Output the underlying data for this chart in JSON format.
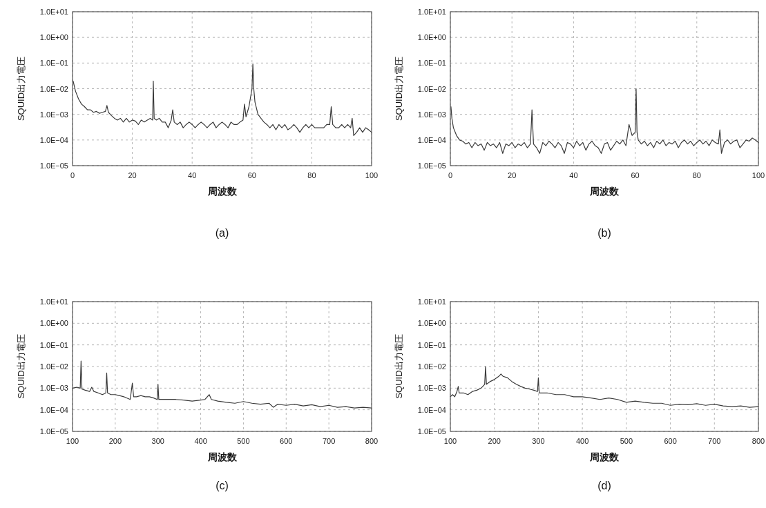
{
  "chart_data": [
    {
      "type": "line",
      "xlabel": "周波数",
      "ylabel": "SQUID出力電圧",
      "annotations": [
        "(a)"
      ],
      "log": "y",
      "grid": true,
      "xlim": [
        0,
        100
      ],
      "xticks": [
        0,
        20,
        40,
        60,
        80,
        100
      ],
      "ylim": [
        1e-05,
        10
      ],
      "yticks": [
        {
          "value": 1e-05,
          "label": "1.0E−05"
        },
        {
          "value": 0.0001,
          "label": "1.0E−04"
        },
        {
          "value": 0.001,
          "label": "1.0E−03"
        },
        {
          "value": 0.01,
          "label": "1.0E−02"
        },
        {
          "value": 0.1,
          "label": "1.0E−01"
        },
        {
          "value": 1,
          "label": "1.0E+00"
        },
        {
          "value": 10,
          "label": "1.0E+01"
        }
      ],
      "series": [
        {
          "color": "#3a3a3a",
          "x": [
            0.2,
            1,
            2,
            3,
            4,
            5,
            6,
            7,
            8,
            9,
            10,
            11,
            11.5,
            12,
            13,
            14,
            15,
            16,
            17,
            18,
            19,
            20,
            21,
            22,
            23,
            24,
            25,
            26,
            26.8,
            27,
            27.3,
            28,
            29,
            30,
            31,
            32,
            33,
            33.5,
            34,
            35,
            36,
            37,
            38,
            39,
            40,
            41,
            42,
            43,
            44,
            45,
            46,
            47,
            48,
            49,
            50,
            51,
            52,
            53,
            54,
            55,
            56,
            57,
            57.5,
            58,
            59,
            60,
            60.3,
            60.6,
            61,
            62,
            63,
            64,
            65,
            66,
            67,
            68,
            69,
            70,
            71,
            72,
            73,
            74,
            75,
            76,
            77,
            78,
            79,
            80,
            81,
            82,
            83,
            84,
            85,
            86,
            86.5,
            87,
            88,
            89,
            90,
            91,
            92,
            93,
            93.5,
            94,
            95,
            96,
            97,
            98,
            99,
            100
          ],
          "values": [
            0.02,
            0.008,
            0.004,
            0.0025,
            0.002,
            0.0015,
            0.0015,
            0.0012,
            0.0013,
            0.0011,
            0.0012,
            0.0013,
            0.0022,
            0.0012,
            0.0009,
            0.0007,
            0.0006,
            0.0007,
            0.0005,
            0.0007,
            0.0005,
            0.0006,
            0.00055,
            0.0004,
            0.0006,
            0.0005,
            0.0006,
            0.0007,
            0.0006,
            0.02,
            0.0007,
            0.0006,
            0.0007,
            0.0005,
            0.0005,
            0.0003,
            0.0006,
            0.0015,
            0.0005,
            0.0004,
            0.0005,
            0.0003,
            0.0004,
            0.0005,
            0.0004,
            0.0003,
            0.0004,
            0.0005,
            0.0004,
            0.0003,
            0.0004,
            0.0005,
            0.0003,
            0.0004,
            0.0005,
            0.0004,
            0.0003,
            0.0005,
            0.0004,
            0.0004,
            0.0005,
            0.0006,
            0.0025,
            0.0008,
            0.002,
            0.01,
            0.09,
            0.01,
            0.003,
            0.001,
            0.0007,
            0.0005,
            0.0004,
            0.0003,
            0.0004,
            0.00025,
            0.0004,
            0.0003,
            0.0004,
            0.00025,
            0.0003,
            0.0004,
            0.0003,
            0.0002,
            0.0003,
            0.0004,
            0.0003,
            0.0004,
            0.0003,
            0.0003,
            0.0003,
            0.0003,
            0.0004,
            0.0004,
            0.002,
            0.0004,
            0.0003,
            0.0003,
            0.0004,
            0.0003,
            0.0004,
            0.0003,
            0.0007,
            0.00015,
            0.0002,
            0.0003,
            0.0002,
            0.0003,
            0.00025,
            0.0002
          ]
        }
      ]
    },
    {
      "type": "line",
      "xlabel": "周波数",
      "ylabel": "SQUID出力電圧",
      "annotations": [
        "(b)"
      ],
      "log": "y",
      "grid": true,
      "xlim": [
        0,
        100
      ],
      "xticks": [
        0,
        20,
        40,
        60,
        80,
        100
      ],
      "ylim": [
        1e-05,
        10
      ],
      "yticks": [
        {
          "value": 1e-05,
          "label": "1.0E−05"
        },
        {
          "value": 0.0001,
          "label": "1.0E−04"
        },
        {
          "value": 0.001,
          "label": "1.0E−03"
        },
        {
          "value": 0.01,
          "label": "1.0E−02"
        },
        {
          "value": 0.1,
          "label": "1.0E−01"
        },
        {
          "value": 1,
          "label": "1.0E+00"
        },
        {
          "value": 10,
          "label": "1.0E+01"
        }
      ],
      "series": [
        {
          "color": "#3a3a3a",
          "x": [
            0.2,
            0.5,
            1,
            2,
            3,
            4,
            5,
            6,
            7,
            8,
            9,
            10,
            11,
            12,
            13,
            14,
            15,
            16,
            17,
            18,
            19,
            20,
            21,
            22,
            23,
            24,
            25,
            26,
            26.5,
            27,
            28,
            29,
            30,
            31,
            32,
            33,
            34,
            35,
            36,
            37,
            38,
            39,
            40,
            41,
            42,
            43,
            44,
            45,
            46,
            47,
            48,
            49,
            50,
            51,
            52,
            53,
            54,
            55,
            56,
            57,
            58,
            59,
            60,
            60.3,
            60.6,
            61,
            62,
            63,
            64,
            65,
            66,
            67,
            68,
            69,
            70,
            71,
            72,
            73,
            74,
            75,
            76,
            77,
            78,
            79,
            80,
            81,
            82,
            83,
            84,
            85,
            86,
            87,
            87.5,
            88,
            89,
            90,
            91,
            92,
            93,
            94,
            95,
            96,
            97,
            98,
            99,
            100
          ],
          "values": [
            0.002,
            0.0007,
            0.0003,
            0.00015,
            0.0001,
            9e-05,
            7e-05,
            8e-05,
            5e-05,
            8e-05,
            6e-05,
            7e-05,
            4e-05,
            8e-05,
            6e-05,
            7e-05,
            5e-05,
            8e-05,
            3e-05,
            7e-05,
            6e-05,
            8e-05,
            5e-05,
            7e-05,
            6e-05,
            8e-05,
            5e-05,
            7e-05,
            0.0015,
            7e-05,
            5e-05,
            3e-05,
            8e-05,
            6e-05,
            9e-05,
            7e-05,
            5e-05,
            8e-05,
            6e-05,
            3e-05,
            8e-05,
            7e-05,
            5e-05,
            9e-05,
            6e-05,
            8e-05,
            4e-05,
            7e-05,
            9e-05,
            6e-05,
            5e-05,
            3e-05,
            7e-05,
            8e-05,
            4e-05,
            6e-05,
            9e-05,
            7e-05,
            0.0001,
            6e-05,
            0.0004,
            0.00015,
            0.0002,
            0.01,
            0.0002,
            0.0001,
            7e-05,
            9e-05,
            6e-05,
            8e-05,
            5e-05,
            9e-05,
            7e-05,
            0.0001,
            6e-05,
            8e-05,
            7e-05,
            9e-05,
            5e-05,
            8e-05,
            0.0001,
            7e-05,
            9e-05,
            6e-05,
            8e-05,
            0.0001,
            7e-05,
            9e-05,
            6e-05,
            0.0001,
            8e-05,
            7e-05,
            0.00025,
            3e-05,
            8e-05,
            0.0001,
            7e-05,
            9e-05,
            0.0001,
            5e-05,
            7e-05,
            0.0001,
            9e-05,
            0.00012,
            0.0001,
            8e-05
          ]
        }
      ]
    },
    {
      "type": "line",
      "xlabel": "周波数",
      "ylabel": "SQUID出力電圧",
      "annotations": [
        "(c)"
      ],
      "log": "y",
      "grid": true,
      "xlim": [
        100,
        800
      ],
      "xticks": [
        100,
        200,
        300,
        400,
        500,
        600,
        700,
        800
      ],
      "ylim": [
        1e-05,
        10
      ],
      "yticks": [
        {
          "value": 1e-05,
          "label": "1.0E−05"
        },
        {
          "value": 0.0001,
          "label": "1.0E−04"
        },
        {
          "value": 0.001,
          "label": "1.0E−03"
        },
        {
          "value": 0.01,
          "label": "1.0E−02"
        },
        {
          "value": 0.1,
          "label": "1.0E−01"
        },
        {
          "value": 1,
          "label": "1.0E+00"
        },
        {
          "value": 10,
          "label": "1.0E+01"
        }
      ],
      "series": [
        {
          "color": "#3a3a3a",
          "x": [
            100,
            110,
            118,
            120,
            122,
            130,
            140,
            145,
            150,
            160,
            170,
            178,
            180,
            182,
            190,
            200,
            210,
            220,
            235,
            240,
            243,
            250,
            260,
            270,
            280,
            290,
            298,
            300,
            302,
            320,
            340,
            360,
            380,
            400,
            410,
            420,
            425,
            440,
            460,
            480,
            500,
            520,
            540,
            560,
            570,
            580,
            600,
            620,
            640,
            660,
            680,
            700,
            720,
            740,
            760,
            780,
            800
          ],
          "values": [
            0.001,
            0.0011,
            0.001,
            0.018,
            0.0009,
            0.0008,
            0.0007,
            0.0011,
            0.0007,
            0.0006,
            0.0005,
            0.0006,
            0.005,
            0.0006,
            0.0005,
            0.0005,
            0.00045,
            0.0004,
            0.0003,
            0.0017,
            0.0004,
            0.0004,
            0.00045,
            0.0004,
            0.0004,
            0.00035,
            0.0003,
            0.0015,
            0.0003,
            0.0003,
            0.0003,
            0.00028,
            0.00025,
            0.00028,
            0.0003,
            0.0005,
            0.0003,
            0.00025,
            0.00022,
            0.0002,
            0.00024,
            0.0002,
            0.00018,
            0.0002,
            0.00013,
            0.00018,
            0.00016,
            0.00018,
            0.00015,
            0.00017,
            0.00014,
            0.00016,
            0.00013,
            0.00014,
            0.00012,
            0.00013,
            0.00012
          ]
        }
      ]
    },
    {
      "type": "line",
      "xlabel": "周波数",
      "ylabel": "SQUID出力電圧",
      "annotations": [
        "(d)"
      ],
      "log": "y",
      "grid": true,
      "xlim": [
        100,
        800
      ],
      "xticks": [
        100,
        200,
        300,
        400,
        500,
        600,
        700,
        800
      ],
      "ylim": [
        1e-05,
        10
      ],
      "yticks": [
        {
          "value": 1e-05,
          "label": "1.0E−05"
        },
        {
          "value": 0.0001,
          "label": "1.0E−04"
        },
        {
          "value": 0.001,
          "label": "1.0E−03"
        },
        {
          "value": 0.01,
          "label": "1.0E−02"
        },
        {
          "value": 0.1,
          "label": "1.0E−01"
        },
        {
          "value": 1,
          "label": "1.0E+00"
        },
        {
          "value": 10,
          "label": "1.0E+01"
        }
      ],
      "series": [
        {
          "color": "#3a3a3a",
          "x": [
            100,
            105,
            110,
            115,
            118,
            120,
            130,
            140,
            150,
            160,
            170,
            178,
            180,
            182,
            190,
            200,
            210,
            215,
            220,
            230,
            240,
            250,
            260,
            270,
            280,
            290,
            298,
            300,
            302,
            320,
            340,
            360,
            380,
            400,
            420,
            440,
            460,
            480,
            500,
            520,
            540,
            560,
            580,
            600,
            620,
            640,
            660,
            680,
            700,
            720,
            740,
            760,
            780,
            800
          ],
          "values": [
            0.0004,
            0.0005,
            0.0004,
            0.0007,
            0.0012,
            0.0006,
            0.0006,
            0.0005,
            0.0007,
            0.0008,
            0.001,
            0.0015,
            0.01,
            0.0015,
            0.002,
            0.0025,
            0.0035,
            0.0045,
            0.0035,
            0.003,
            0.002,
            0.0015,
            0.0012,
            0.001,
            0.0009,
            0.0008,
            0.0007,
            0.003,
            0.0006,
            0.0006,
            0.0005,
            0.0005,
            0.0004,
            0.0004,
            0.00035,
            0.0003,
            0.00035,
            0.0003,
            0.00022,
            0.00025,
            0.00022,
            0.0002,
            0.0002,
            0.00016,
            0.00018,
            0.00017,
            0.00019,
            0.00016,
            0.00018,
            0.00015,
            0.00014,
            0.00015,
            0.00013,
            0.00014
          ]
        }
      ]
    }
  ]
}
